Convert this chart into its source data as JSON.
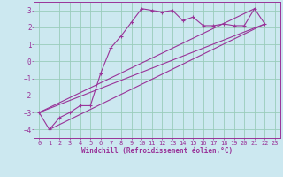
{
  "xlabel": "Windchill (Refroidissement éolien,°C)",
  "background_color": "#cce8f0",
  "grid_color": "#99ccbb",
  "line_color": "#993399",
  "spine_color": "#993399",
  "xlim": [
    -0.5,
    23.5
  ],
  "ylim": [
    -4.5,
    3.5
  ],
  "yticks": [
    -4,
    -3,
    -2,
    -1,
    0,
    1,
    2,
    3
  ],
  "xticks": [
    0,
    1,
    2,
    3,
    4,
    5,
    6,
    7,
    8,
    9,
    10,
    11,
    12,
    13,
    14,
    15,
    16,
    17,
    18,
    19,
    20,
    21,
    22,
    23
  ],
  "line1_x": [
    0,
    1,
    2,
    3,
    4,
    5,
    6,
    7,
    8,
    9,
    10,
    11,
    12,
    13,
    14,
    15,
    16,
    17,
    18,
    19,
    20,
    21,
    22
  ],
  "line1_y": [
    -3.0,
    -4.0,
    -3.3,
    -3.0,
    -2.6,
    -2.6,
    -0.7,
    0.8,
    1.5,
    2.3,
    3.1,
    3.0,
    2.9,
    3.0,
    2.4,
    2.6,
    2.1,
    2.1,
    2.2,
    2.1,
    2.1,
    3.1,
    2.2
  ],
  "line2_x": [
    0,
    22
  ],
  "line2_y": [
    -3.0,
    2.2
  ],
  "line3_x": [
    1,
    22
  ],
  "line3_y": [
    -4.0,
    2.2
  ],
  "line4_x": [
    0,
    21
  ],
  "line4_y": [
    -3.0,
    3.1
  ],
  "tick_fontsize": 5,
  "label_fontsize": 5.5,
  "lw": 0.8,
  "marker_size": 3
}
